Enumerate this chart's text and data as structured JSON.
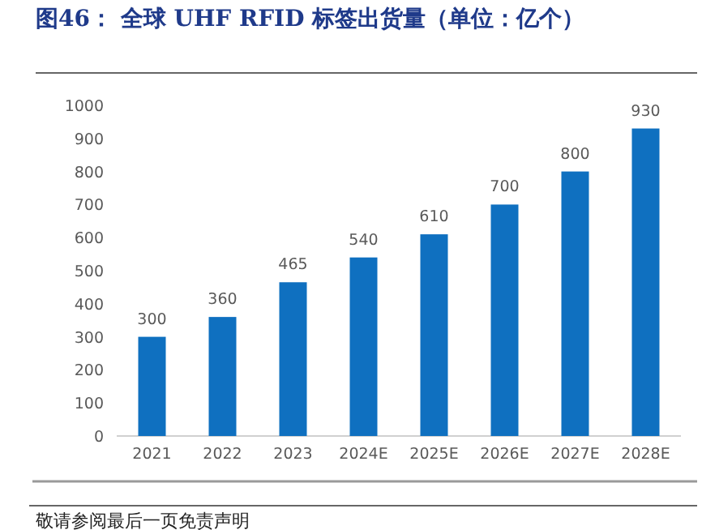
{
  "chart_data": {
    "type": "bar",
    "title": "图46：  全球 UHF RFID 标签出货量（单位：亿个）",
    "categories": [
      "2021",
      "2022",
      "2023",
      "2024E",
      "2025E",
      "2026E",
      "2027E",
      "2028E"
    ],
    "values": [
      300,
      360,
      465,
      540,
      610,
      700,
      800,
      930
    ],
    "color": "#0f70c0",
    "ylim": [
      0,
      1000
    ],
    "yticks": [
      0,
      100,
      200,
      300,
      400,
      500,
      600,
      700,
      800,
      900,
      1000
    ],
    "data_labels": true,
    "grid": false,
    "annotations": [
      "敬请参阅最后一页免责声明"
    ]
  }
}
